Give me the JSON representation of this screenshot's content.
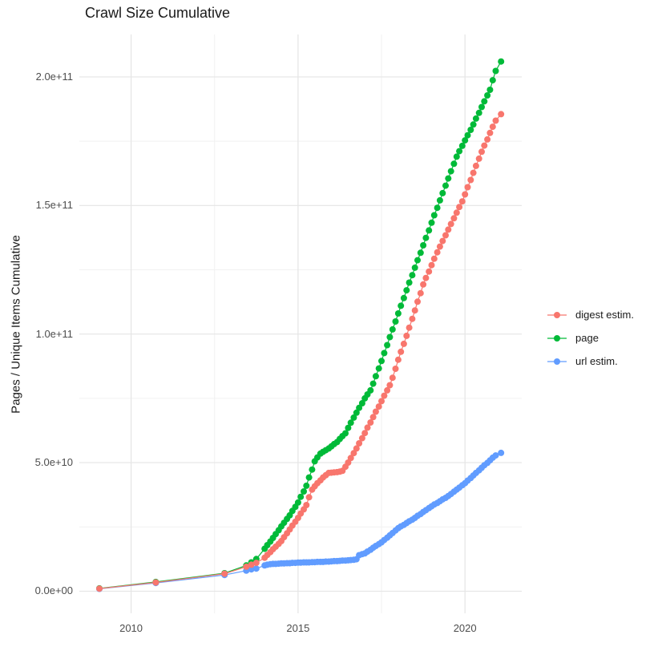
{
  "title": "Crawl Size Cumulative",
  "y_axis": {
    "label": "Pages / Unique Items Cumulative",
    "tick_labels": [
      "0.0e+00",
      "5.0e+10",
      "1.0e+11",
      "1.5e+11",
      "2.0e+11"
    ],
    "tick_values": [
      0,
      50000000000.0,
      100000000000.0,
      150000000000.0,
      200000000000.0
    ],
    "minor_values": [
      25000000000.0,
      75000000000.0,
      125000000000.0,
      175000000000.0
    ]
  },
  "x_axis": {
    "tick_labels": [
      "2010",
      "2015",
      "2020"
    ],
    "tick_values": [
      2010,
      2015,
      2020
    ],
    "minor_values": [
      2012.5,
      2017.5
    ]
  },
  "legend": {
    "items": [
      {
        "label": "digest estim.",
        "color": "#F8766D"
      },
      {
        "label": "page",
        "color": "#00BA38"
      },
      {
        "label": "url estim.",
        "color": "#619CFF"
      }
    ]
  },
  "colors": {
    "grid_major": "#e5e5e5",
    "grid_minor": "#f1f1f1",
    "tick_text": "#4d4d4d",
    "title_text": "#1a1a1a",
    "background": "#ffffff"
  },
  "chart_data": {
    "type": "scatter",
    "title": "Crawl Size Cumulative",
    "xlabel": "",
    "ylabel": "Pages / Unique Items Cumulative",
    "xlim": [
      2008.45,
      2021.7
    ],
    "ylim": [
      -8600000000.0,
      216500000000.0
    ],
    "grid": true,
    "legend_position": "right",
    "x": [
      2009.05,
      2010.74,
      2012.8,
      2013.45,
      2013.6,
      2013.75,
      2014,
      2014.08,
      2014.17,
      2014.25,
      2014.33,
      2014.42,
      2014.5,
      2014.58,
      2014.67,
      2014.75,
      2014.83,
      2014.92,
      2015,
      2015.08,
      2015.17,
      2015.25,
      2015.33,
      2015.42,
      2015.5,
      2015.58,
      2015.67,
      2015.75,
      2015.83,
      2015.92,
      2016,
      2016.08,
      2016.17,
      2016.25,
      2016.33,
      2016.42,
      2016.5,
      2016.58,
      2016.67,
      2016.75,
      2016.83,
      2016.92,
      2017,
      2017.08,
      2017.17,
      2017.25,
      2017.33,
      2017.42,
      2017.5,
      2017.58,
      2017.67,
      2017.75,
      2017.83,
      2017.92,
      2018,
      2018.08,
      2018.17,
      2018.25,
      2018.33,
      2018.42,
      2018.5,
      2018.58,
      2018.67,
      2018.75,
      2018.83,
      2018.92,
      2019,
      2019.08,
      2019.17,
      2019.25,
      2019.33,
      2019.42,
      2019.5,
      2019.58,
      2019.67,
      2019.75,
      2019.83,
      2019.92,
      2020,
      2020.08,
      2020.17,
      2020.25,
      2020.33,
      2020.42,
      2020.5,
      2020.58,
      2020.67,
      2020.75,
      2020.83,
      2020.92,
      2021.08
    ],
    "series": [
      {
        "name": "digest estim.",
        "color": "#F8766D",
        "values": [
          1000000000.0,
          3400000000.0,
          6800000000.0,
          9500000000.0,
          10300000000.0,
          11000000000.0,
          13000000000.0,
          14100000000.0,
          15200000000.0,
          16300000000.0,
          17300000000.0,
          18400000000.0,
          19500000000.0,
          21000000000.0,
          22500000000.0,
          24000000000.0,
          25500000000.0,
          27000000000.0,
          28500000000.0,
          30200000000.0,
          31800000000.0,
          33500000000.0,
          36500000000.0,
          39500000000.0,
          40800000000.0,
          42000000000.0,
          43100000000.0,
          44200000000.0,
          45100000000.0,
          46000000000.0,
          46100000000.0,
          46200000000.0,
          46300000000.0,
          46500000000.0,
          46800000000.0,
          48400000000.0,
          50000000000.0,
          51800000000.0,
          53700000000.0,
          55500000000.0,
          57500000000.0,
          59500000000.0,
          61500000000.0,
          63600000000.0,
          65600000000.0,
          67700000000.0,
          69800000000.0,
          71800000000.0,
          73900000000.0,
          76000000000.0,
          78100000000.0,
          80100000000.0,
          83000000000.0,
          86500000000.0,
          90000000000.0,
          93100000000.0,
          96200000000.0,
          99300000000.0,
          102500000000.0,
          105900000000.0,
          109200000000.0,
          112600000000.0,
          115900000000.0,
          119300000000.0,
          121800000000.0,
          124300000000.0,
          126800000000.0,
          129300000000.0,
          131800000000.0,
          134000000000.0,
          136200000000.0,
          138400000000.0,
          140600000000.0,
          142800000000.0,
          145000000000.0,
          147200000000.0,
          149400000000.0,
          151600000000.0,
          154300000000.0,
          157100000000.0,
          159900000000.0,
          162700000000.0,
          165400000000.0,
          168200000000.0,
          170900000000.0,
          173300000000.0,
          175700000000.0,
          178200000000.0,
          180600000000.0,
          183000000000.0,
          185500000000.0
        ]
      },
      {
        "name": "page",
        "color": "#00BA38",
        "values": [
          1100000000.0,
          3600000000.0,
          7000000000.0,
          10000000000.0,
          11200000000.0,
          12500000000.0,
          16500000000.0,
          17900000000.0,
          19300000000.0,
          20700000000.0,
          22200000000.0,
          23700000000.0,
          25200000000.0,
          26600000000.0,
          28100000000.0,
          29500000000.0,
          31200000000.0,
          32800000000.0,
          34500000000.0,
          36700000000.0,
          38800000000.0,
          41000000000.0,
          44200000000.0,
          47300000000.0,
          50500000000.0,
          52000000000.0,
          53500000000.0,
          54200000000.0,
          54800000000.0,
          55500000000.0,
          56300000000.0,
          57200000000.0,
          58000000000.0,
          59200000000.0,
          60300000000.0,
          61400000000.0,
          63500000000.0,
          65500000000.0,
          67500000000.0,
          69400000000.0,
          71300000000.0,
          73100000000.0,
          75000000000.0,
          76500000000.0,
          78100000000.0,
          80700000000.0,
          83600000000.0,
          86600000000.0,
          89500000000.0,
          92600000000.0,
          95700000000.0,
          98800000000.0,
          101800000000.0,
          104900000000.0,
          108000000000.0,
          111000000000.0,
          114000000000.0,
          117000000000.0,
          120000000000.0,
          122900000000.0,
          125800000000.0,
          128700000000.0,
          131600000000.0,
          134500000000.0,
          137400000000.0,
          140300000000.0,
          143300000000.0,
          146200000000.0,
          149100000000.0,
          152000000000.0,
          154800000000.0,
          157700000000.0,
          160500000000.0,
          163300000000.0,
          166200000000.0,
          169000000000.0,
          171100000000.0,
          173200000000.0,
          175300000000.0,
          177300000000.0,
          179400000000.0,
          181500000000.0,
          183800000000.0,
          186000000000.0,
          188300000000.0,
          190500000000.0,
          192800000000.0,
          195000000000.0,
          198700000000.0,
          202300000000.0,
          206000000000.0
        ]
      },
      {
        "name": "url estim.",
        "color": "#619CFF",
        "values": [
          900000000.0,
          3200000000.0,
          6300000000.0,
          8000000000.0,
          8500000000.0,
          8800000000.0,
          10000000000.0,
          10300000000.0,
          10500000000.0,
          10600000000.0,
          10600000000.0,
          10700000000.0,
          10800000000.0,
          10800000000.0,
          10900000000.0,
          10900000000.0,
          11000000000.0,
          11000000000.0,
          11100000000.0,
          11100000000.0,
          11200000000.0,
          11200000000.0,
          11200000000.0,
          11300000000.0,
          11300000000.0,
          11400000000.0,
          11400000000.0,
          11400000000.0,
          11500000000.0,
          11500000000.0,
          11600000000.0,
          11700000000.0,
          11700000000.0,
          11800000000.0,
          11900000000.0,
          11900000000.0,
          12000000000.0,
          12100000000.0,
          12200000000.0,
          12400000000.0,
          14000000000.0,
          14400000000.0,
          14700000000.0,
          15400000000.0,
          16100000000.0,
          16900000000.0,
          17600000000.0,
          18300000000.0,
          19000000000.0,
          19900000000.0,
          20800000000.0,
          21700000000.0,
          22600000000.0,
          23600000000.0,
          24500000000.0,
          25200000000.0,
          25800000000.0,
          26500000000.0,
          27200000000.0,
          27800000000.0,
          28500000000.0,
          29300000000.0,
          30000000000.0,
          30800000000.0,
          31500000000.0,
          32300000000.0,
          33000000000.0,
          33700000000.0,
          34300000000.0,
          35000000000.0,
          35700000000.0,
          36300000000.0,
          37000000000.0,
          37800000000.0,
          38700000000.0,
          39500000000.0,
          40300000000.0,
          41200000000.0,
          42000000000.0,
          43000000000.0,
          44000000000.0,
          45000000000.0,
          46000000000.0,
          47000000000.0,
          48000000000.0,
          49000000000.0,
          49900000000.0,
          50900000000.0,
          51900000000.0,
          52800000000.0,
          53800000000.0
        ]
      }
    ]
  }
}
